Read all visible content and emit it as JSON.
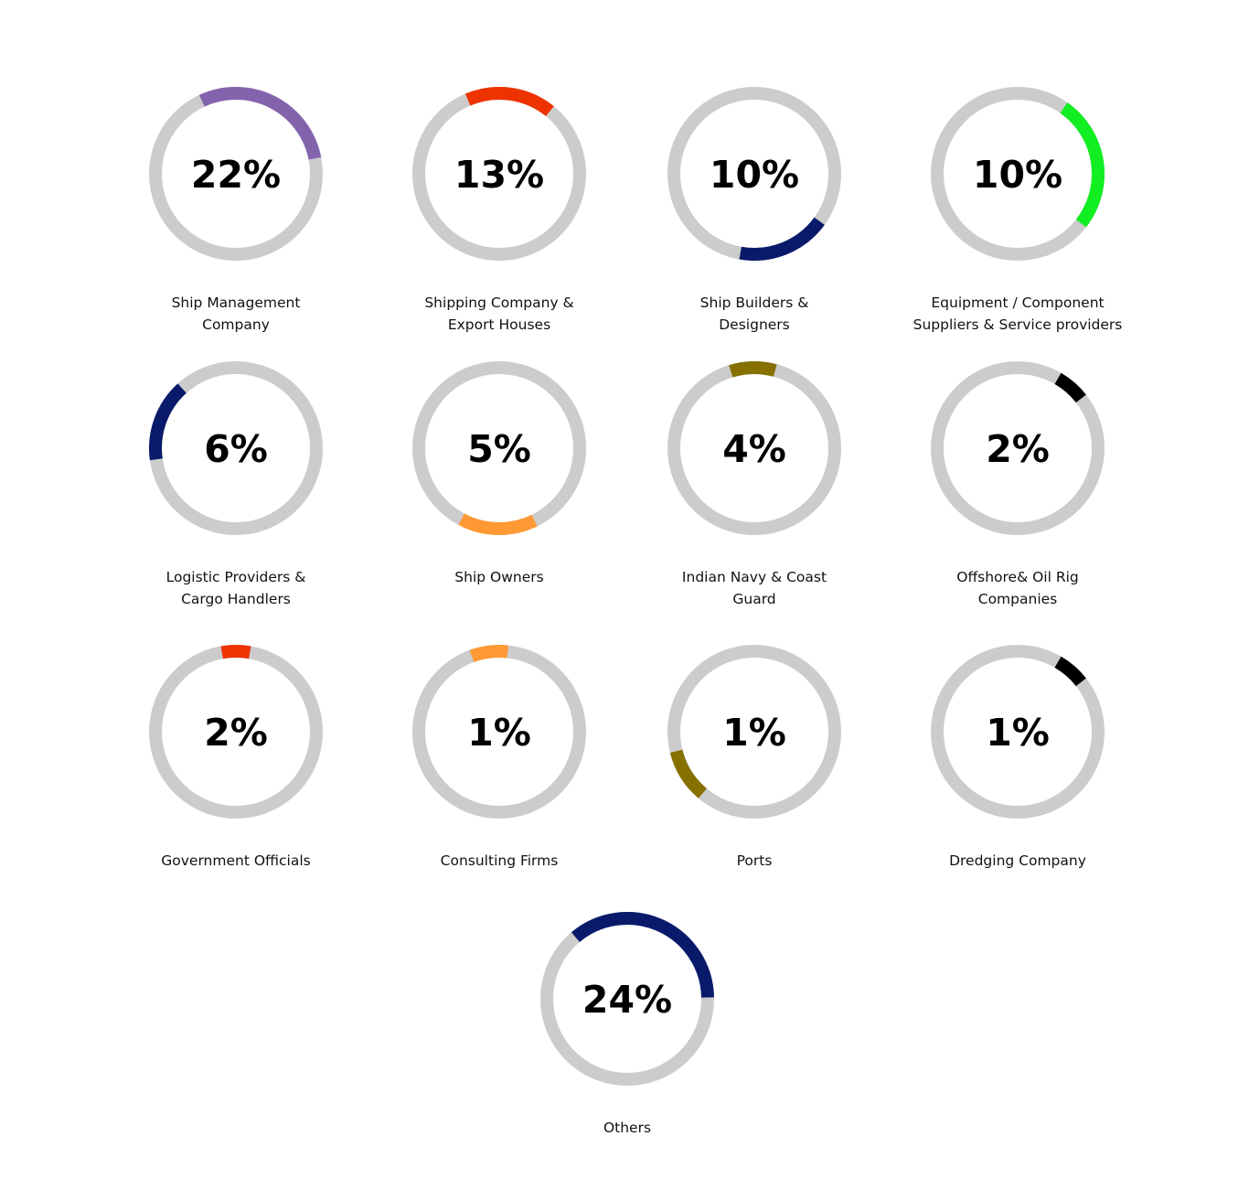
{
  "chart_data": {
    "type": "donut",
    "track_color": "#cccccc",
    "items": [
      {
        "label": "Ship Management\nCompany",
        "value": 22,
        "value_text": "22%",
        "color": "#8463ad",
        "arc_start_deg": 335,
        "arc_sweep_deg": 104
      },
      {
        "label": "Shipping Company &\nExport Houses",
        "value": 13,
        "value_text": "13%",
        "color": "#ee3300",
        "arc_start_deg": 337,
        "arc_sweep_deg": 62
      },
      {
        "label": "Ship Builders &\nDesigners",
        "value": 10,
        "value_text": "10%",
        "color": "#0a1a6b",
        "arc_start_deg": 126,
        "arc_sweep_deg": 64
      },
      {
        "label": "Equipment / Component\nSuppliers & Service providers",
        "value": 10,
        "value_text": "10%",
        "color": "#11ee22",
        "arc_start_deg": 35,
        "arc_sweep_deg": 93
      },
      {
        "label": "Logistic Providers &\nCargo Handlers",
        "value": 6,
        "value_text": "6%",
        "color": "#0a1a6b",
        "arc_start_deg": 262,
        "arc_sweep_deg": 56
      },
      {
        "label": "Ship Owners",
        "value": 5,
        "value_text": "5%",
        "color": "#ff9933",
        "arc_start_deg": 154,
        "arc_sweep_deg": 54
      },
      {
        "label": "Indian Navy & Coast\nGuard",
        "value": 4,
        "value_text": "4%",
        "color": "#857000",
        "arc_start_deg": 343,
        "arc_sweep_deg": 32
      },
      {
        "label": "Offshore& Oil Rig\nCompanies",
        "value": 2,
        "value_text": "2%",
        "color": "#000000",
        "arc_start_deg": 30,
        "arc_sweep_deg": 22
      },
      {
        "label": "Government Officials",
        "value": 2,
        "value_text": "2%",
        "color": "#ee3300",
        "arc_start_deg": 350,
        "arc_sweep_deg": 20
      },
      {
        "label": "Consulting Firms",
        "value": 1,
        "value_text": "1%",
        "color": "#ff9933",
        "arc_start_deg": 340,
        "arc_sweep_deg": 26
      },
      {
        "label": "Ports",
        "value": 1,
        "value_text": "1%",
        "color": "#857000",
        "arc_start_deg": 220,
        "arc_sweep_deg": 36
      },
      {
        "label": "Dredging Company",
        "value": 1,
        "value_text": "1%",
        "color": "#000000",
        "arc_start_deg": 30,
        "arc_sweep_deg": 22
      },
      {
        "label": "Others",
        "value": 24,
        "value_text": "24%",
        "color": "#0a1a6b",
        "arc_start_deg": 320,
        "arc_sweep_deg": 129
      }
    ]
  }
}
